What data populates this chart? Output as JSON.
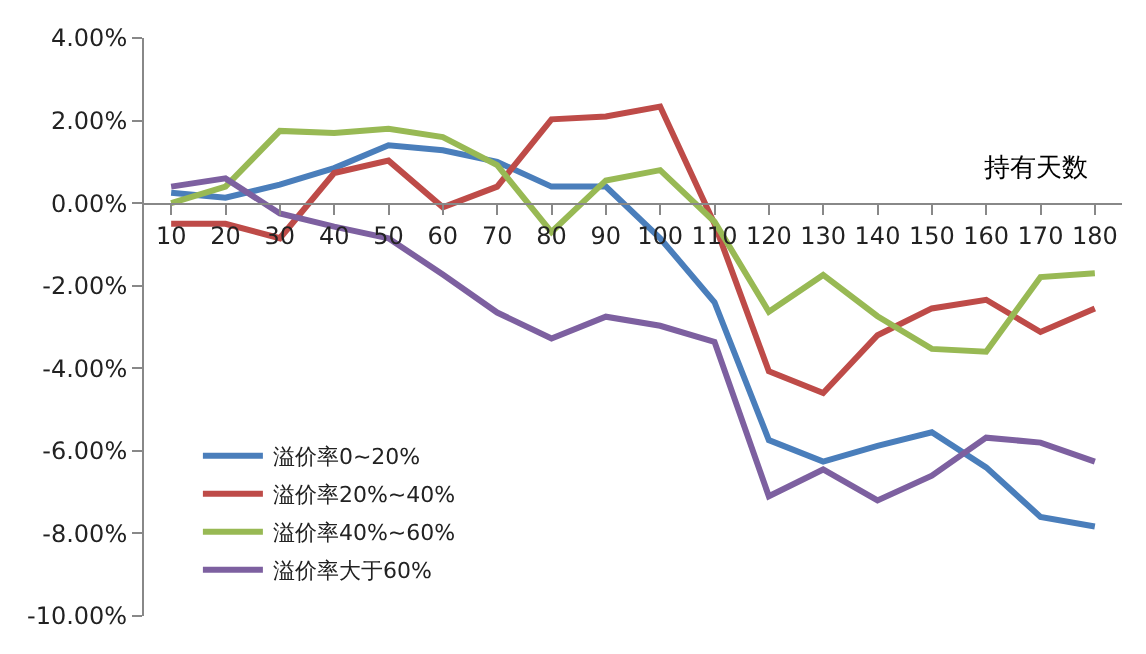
{
  "chart_data": {
    "type": "line",
    "xlabel": "持有天数",
    "categories": [
      "10",
      "20",
      "30",
      "40",
      "50",
      "60",
      "70",
      "80",
      "90",
      "100",
      "110",
      "120",
      "130",
      "140",
      "150",
      "160",
      "170",
      "180"
    ],
    "series": [
      {
        "name": "溢价率0~20%",
        "color": "#4a7ebb",
        "values": [
          0.25,
          0.13,
          0.45,
          0.85,
          1.4,
          1.28,
          1.0,
          0.4,
          0.4,
          -0.85,
          -2.4,
          -5.74,
          -6.26,
          -5.88,
          -5.55,
          -6.4,
          -7.6,
          -7.83
        ]
      },
      {
        "name": "溢价率20%~40%",
        "color": "#be4b48",
        "values": [
          -0.5,
          -0.5,
          -0.85,
          0.73,
          1.03,
          -0.1,
          0.4,
          2.03,
          2.1,
          2.34,
          -0.5,
          -4.07,
          -4.6,
          -3.2,
          -2.55,
          -2.34,
          -3.12,
          -2.55
        ]
      },
      {
        "name": "溢价率40%~60%",
        "color": "#98b954",
        "values": [
          0.0,
          0.4,
          1.75,
          1.7,
          1.8,
          1.6,
          0.92,
          -0.7,
          0.55,
          0.8,
          -0.45,
          -2.63,
          -1.74,
          -2.74,
          -3.53,
          -3.6,
          -1.79,
          -1.7
        ]
      },
      {
        "name": "溢价率大于60%",
        "color": "#7d60a0",
        "values": [
          0.4,
          0.6,
          -0.25,
          -0.57,
          -0.85,
          -1.73,
          -2.65,
          -3.28,
          -2.75,
          -2.97,
          -3.36,
          -7.1,
          -6.45,
          -7.2,
          -6.6,
          -5.68,
          -5.8,
          -6.26
        ]
      }
    ],
    "ylim": [
      -10,
      4
    ],
    "yticks": [
      {
        "value": 4,
        "label": "4.00%"
      },
      {
        "value": 2,
        "label": "2.00%"
      },
      {
        "value": 0,
        "label": "0.00%"
      },
      {
        "value": -2,
        "label": "-2.00%"
      },
      {
        "value": -4,
        "label": "-4.00%"
      },
      {
        "value": -6,
        "label": "-6.00%"
      },
      {
        "value": -8,
        "label": "-8.00%"
      },
      {
        "value": -10,
        "label": "-10.00%"
      }
    ],
    "legend": "bottom left",
    "marker": "none",
    "line_style": "solid"
  }
}
